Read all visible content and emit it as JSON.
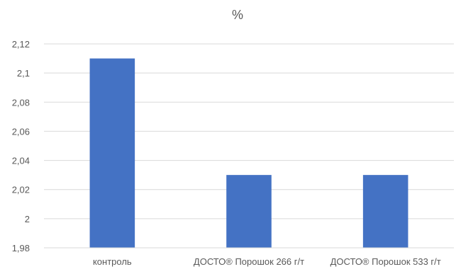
{
  "chart_data": {
    "type": "bar",
    "title": "%",
    "xlabel": "",
    "ylabel": "",
    "categories": [
      "контроль",
      "ДОСТО® Порошок 266 г/т",
      "ДОСТО® Порошок 533 г/т"
    ],
    "values": [
      2.11,
      2.03,
      2.03
    ],
    "ylim": [
      1.98,
      2.12
    ],
    "yticks": [
      1.98,
      2.0,
      2.02,
      2.04,
      2.06,
      2.08,
      2.1,
      2.12
    ],
    "ytick_labels": [
      "1,98",
      "2",
      "2,02",
      "2,04",
      "2,06",
      "2,08",
      "2,1",
      "2,12"
    ],
    "grid": true,
    "legend": "none",
    "bar_color": "#4472C4",
    "grid_color": "#d9d9d9",
    "text_color": "#595959"
  }
}
